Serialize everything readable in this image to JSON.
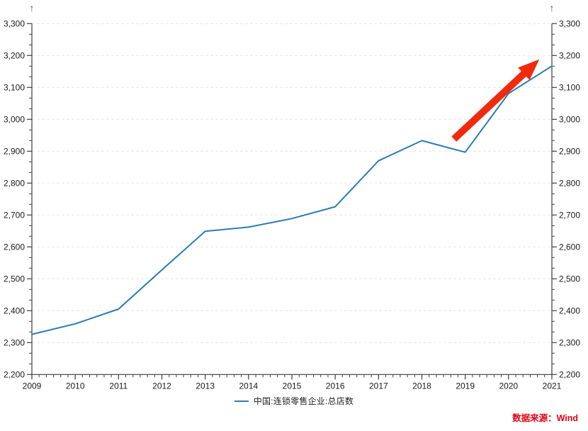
{
  "chart_data": {
    "type": "line",
    "title": "",
    "x_years": [
      2009,
      2010,
      2011,
      2012,
      2013,
      2014,
      2015,
      2016,
      2017,
      2018,
      2019,
      2020,
      2021
    ],
    "x_tick_labels": [
      "2009",
      "2010",
      "2011",
      "2012",
      "2013",
      "2014",
      "2015",
      "2016",
      "2017",
      "2018",
      "2019",
      "2020",
      "2021"
    ],
    "y_tick_labels": [
      "2,200",
      "2,300",
      "2,400",
      "2,500",
      "2,600",
      "2,700",
      "2,800",
      "2,900",
      "3,000",
      "3,100",
      "3,200",
      "3,300"
    ],
    "ylim": [
      2200,
      3300
    ],
    "y_major_step": 100,
    "y_minors_per_major": 3,
    "x_minors_per_major": 6,
    "grid": "horizontal-dashed",
    "dual_y_axis": true,
    "axis_arrow_glyph": "↑",
    "legend_position": "bottom-center",
    "series": [
      {
        "name": "中国:连锁零售企业:总店数",
        "color": "#2b7cb3",
        "values": [
          2326,
          2359,
          2405,
          2528,
          2649,
          2662,
          2689,
          2726,
          2870,
          2933,
          2897,
          3081,
          3167
        ]
      }
    ],
    "annotations": [
      {
        "type": "arrow",
        "color": "#f12a0d",
        "from": {
          "x": 2018.74,
          "y": 2938
        },
        "to": {
          "x": 2020.71,
          "y": 3188
        }
      }
    ]
  },
  "footer": {
    "source": "数据来源：Wind"
  },
  "colors": {
    "line": "#2b7cb3",
    "arrow": "#f12a0d",
    "source_text": "#e60012",
    "grid": "#e7e7e7",
    "axis": "#3c3c3c",
    "tick_label": "#1a1a1a",
    "axis_arrow": "#555555"
  }
}
